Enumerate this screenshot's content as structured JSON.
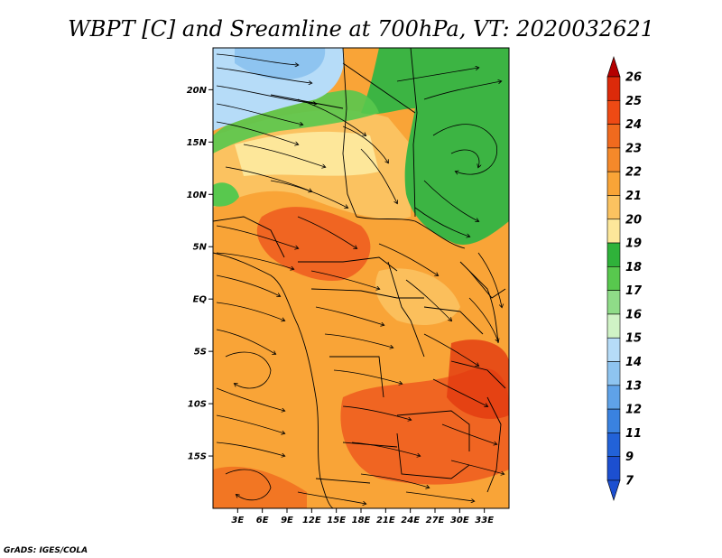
{
  "title": "WBPT [C] and Sreamline at 700hPa, VT: 2020032621",
  "credit": "GrADS: IGES/COLA",
  "map": {
    "lon_range": [
      0,
      36
    ],
    "lat_range": [
      -20,
      24
    ],
    "x_ticks": [
      "3E",
      "6E",
      "9E",
      "12E",
      "15E",
      "18E",
      "21E",
      "24E",
      "27E",
      "30E",
      "33E"
    ],
    "x_tick_values": [
      3,
      6,
      9,
      12,
      15,
      18,
      21,
      24,
      27,
      30,
      33
    ],
    "y_ticks": [
      "20N",
      "15N",
      "10N",
      "5N",
      "EQ",
      "5S",
      "10S",
      "15S"
    ],
    "y_tick_values": [
      20,
      15,
      10,
      5,
      0,
      -5,
      -10,
      -15
    ]
  },
  "colorbar": {
    "labels": [
      "26",
      "25",
      "24",
      "23",
      "22",
      "21",
      "20",
      "19",
      "18",
      "17",
      "16",
      "15",
      "14",
      "13",
      "12",
      "11",
      "9",
      "7"
    ],
    "colors": [
      "#b40000",
      "#dc2a0a",
      "#ee4a14",
      "#f06a1e",
      "#f5892a",
      "#f9a437",
      "#fbc260",
      "#fde79a",
      "#2fb23a",
      "#58c84e",
      "#8fdc88",
      "#d0f3c6",
      "#b6dcf8",
      "#8ec4f0",
      "#5fa2e8",
      "#3a82e0",
      "#2262d8",
      "#1c4fd0"
    ]
  },
  "colors": {
    "land_base": "#f9a437",
    "green_region": "#3cb443",
    "blue_region": "#8ec4f0",
    "warm_region": "#ee5a1e",
    "streamline": "#000000"
  }
}
